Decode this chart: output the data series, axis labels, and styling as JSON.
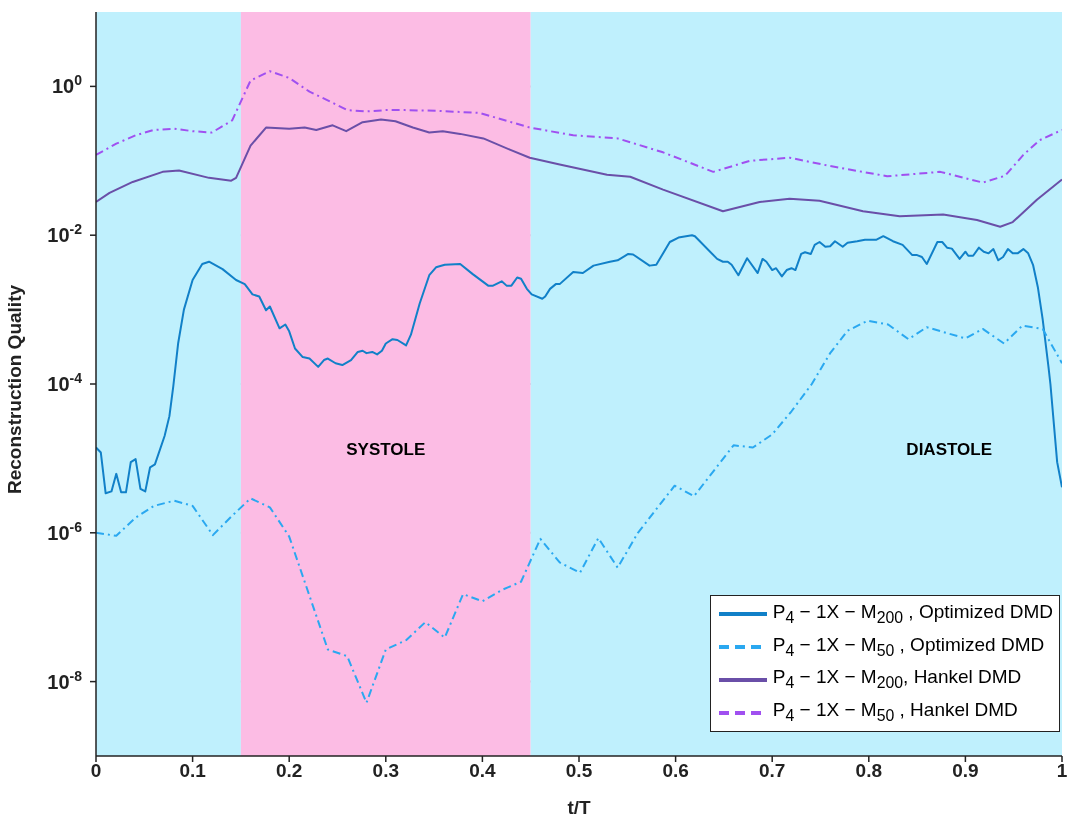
{
  "chart_data": {
    "type": "line",
    "xlabel": "t/T",
    "ylabel": "Reconstruction Quality",
    "log": "y",
    "grid": "y",
    "legend": "bottom right",
    "xlim": [
      0,
      1
    ],
    "xticks": [
      0,
      0.1,
      0.2,
      0.3,
      0.4,
      0.5,
      0.6,
      0.7,
      0.8,
      0.9,
      1
    ],
    "ylim": [
      1e-09,
      10
    ],
    "yticks": [
      {
        "value": 1e-08,
        "label": "10$^{-8}$"
      },
      {
        "value": 1e-06,
        "label": "10$^{-6}$"
      },
      {
        "value": 0.0001,
        "label": "10$^{-4}$"
      },
      {
        "value": 0.01,
        "label": "10$^{-2}$"
      },
      {
        "value": 1,
        "label": "10$^{0}$"
      }
    ],
    "bands": [
      {
        "axis": "x",
        "from": 0,
        "to": 0.15,
        "color": "#bff0fd"
      },
      {
        "axis": "x",
        "from": 0.15,
        "to": 0.45,
        "color": "#fcbce4",
        "label": "SYSTOLE"
      },
      {
        "axis": "x",
        "from": 0.45,
        "to": 1,
        "color": "#bff0fd",
        "label": "DIASTOLE"
      }
    ],
    "series": [
      {
        "name": "P$_{4}$ − 1X − M$_{200}$ , Optimized DMD",
        "color": "#1180c8",
        "line_style": "solid",
        "x": [
          0,
          0.005,
          0.01,
          0.016,
          0.021,
          0.026,
          0.031,
          0.036,
          0.041,
          0.046,
          0.051,
          0.056,
          0.061,
          0.071,
          0.076,
          0.08,
          0.085,
          0.091,
          0.1,
          0.11,
          0.117,
          0.131,
          0.145,
          0.154,
          0.162,
          0.169,
          0.176,
          0.18,
          0.19,
          0.196,
          0.2,
          0.206,
          0.214,
          0.221,
          0.23,
          0.236,
          0.24,
          0.248,
          0.255,
          0.264,
          0.271,
          0.276,
          0.28,
          0.286,
          0.291,
          0.296,
          0.3,
          0.307,
          0.312,
          0.321,
          0.326,
          0.335,
          0.345,
          0.352,
          0.361,
          0.377,
          0.39,
          0.406,
          0.411,
          0.42,
          0.425,
          0.43,
          0.436,
          0.44,
          0.446,
          0.451,
          0.462,
          0.465,
          0.47,
          0.476,
          0.48,
          0.494,
          0.504,
          0.515,
          0.532,
          0.54,
          0.551,
          0.556,
          0.573,
          0.58,
          0.594,
          0.603,
          0.617,
          0.62,
          0.643,
          0.649,
          0.654,
          0.658,
          0.665,
          0.674,
          0.685,
          0.69,
          0.694,
          0.7,
          0.704,
          0.71,
          0.715,
          0.72,
          0.724,
          0.73,
          0.734,
          0.74,
          0.744,
          0.749,
          0.755,
          0.76,
          0.765,
          0.773,
          0.778,
          0.788,
          0.796,
          0.808,
          0.815,
          0.825,
          0.835,
          0.845,
          0.85,
          0.855,
          0.86,
          0.871,
          0.876,
          0.881,
          0.886,
          0.894,
          0.9,
          0.903,
          0.908,
          0.914,
          0.919,
          0.924,
          0.929,
          0.934,
          0.939,
          0.944,
          0.949,
          0.954,
          0.96,
          0.965,
          0.97,
          0.975,
          0.98,
          0.986,
          0.988,
          0.995,
          1
        ],
        "values": [
          1.4e-05,
          1.2e-05,
          3.4e-06,
          3.6e-06,
          6.2e-06,
          3.5e-06,
          3.5e-06,
          8.9e-06,
          9.8e-06,
          3.9e-06,
          3.6e-06,
          7.6e-06,
          8.3e-06,
          2e-05,
          3.7e-05,
          9.3e-05,
          0.00035,
          0.001,
          0.0025,
          0.0041,
          0.0044,
          0.0035,
          0.0025,
          0.0022,
          0.0016,
          0.0015,
          0.00098,
          0.0011,
          0.00056,
          0.00063,
          0.00051,
          0.0003,
          0.00023,
          0.00022,
          0.00017,
          0.00021,
          0.00022,
          0.00019,
          0.00018,
          0.00021,
          0.00027,
          0.00028,
          0.00026,
          0.00027,
          0.00025,
          0.00028,
          0.00035,
          0.0004,
          0.00039,
          0.00033,
          0.00046,
          0.0012,
          0.0029,
          0.0037,
          0.004,
          0.0041,
          0.003,
          0.0021,
          0.0021,
          0.0024,
          0.0021,
          0.0021,
          0.0027,
          0.0026,
          0.0019,
          0.0016,
          0.0014,
          0.0015,
          0.0019,
          0.0022,
          0.0022,
          0.0032,
          0.0031,
          0.0039,
          0.0044,
          0.0046,
          0.0056,
          0.0055,
          0.0039,
          0.004,
          0.0081,
          0.0093,
          0.01,
          0.0097,
          0.0048,
          0.0044,
          0.0044,
          0.004,
          0.0029,
          0.0049,
          0.0031,
          0.0048,
          0.0044,
          0.0034,
          0.0036,
          0.0028,
          0.0034,
          0.0036,
          0.0034,
          0.0056,
          0.0059,
          0.0056,
          0.0074,
          0.0081,
          0.007,
          0.0071,
          0.0083,
          0.007,
          0.0079,
          0.0083,
          0.0087,
          0.0087,
          0.0097,
          0.0083,
          0.0074,
          0.0054,
          0.0054,
          0.0051,
          0.0041,
          0.0081,
          0.0081,
          0.0068,
          0.0066,
          0.0048,
          0.006,
          0.0053,
          0.0053,
          0.0068,
          0.006,
          0.0057,
          0.0065,
          0.0046,
          0.0051,
          0.0065,
          0.0057,
          0.0057,
          0.0065,
          0.0057,
          0.004,
          0.002,
          0.00074,
          0.00017,
          0.0001,
          8.9e-06,
          4.1e-06
        ]
      },
      {
        "name": "P$_{4}$ − 1X − M$_{50}$ , Optimized DMD",
        "color": "#2aa8f0",
        "line_style": "dashed",
        "x": [
          0,
          0.021,
          0.041,
          0.06,
          0.081,
          0.1,
          0.121,
          0.141,
          0.16,
          0.18,
          0.2,
          0.24,
          0.26,
          0.28,
          0.3,
          0.321,
          0.341,
          0.361,
          0.38,
          0.4,
          0.42,
          0.44,
          0.46,
          0.48,
          0.501,
          0.52,
          0.54,
          0.561,
          0.599,
          0.619,
          0.66,
          0.68,
          0.7,
          0.72,
          0.741,
          0.76,
          0.778,
          0.799,
          0.82,
          0.841,
          0.86,
          0.9,
          0.918,
          0.94,
          0.959,
          0.98,
          1
        ],
        "values": [
          1e-06,
          9.1e-07,
          1.6e-06,
          2.3e-06,
          2.7e-06,
          2.3e-06,
          9.3e-07,
          1.7e-06,
          2.9e-06,
          2.2e-06,
          8.9e-07,
          2.7e-08,
          2.2e-08,
          5.2e-09,
          2.7e-08,
          3.6e-08,
          6.3e-08,
          3.9e-08,
          1.5e-07,
          1.2e-07,
          1.7e-07,
          2.2e-07,
          8.3e-07,
          4e-07,
          2.9e-07,
          8.5e-07,
          3.4e-07,
          1e-06,
          4.3e-06,
          3.1e-06,
          1.5e-05,
          1.4e-05,
          2.1e-05,
          4.3e-05,
          0.0001,
          0.00026,
          0.00052,
          0.00071,
          0.00063,
          0.0004,
          0.00058,
          0.00041,
          0.00055,
          0.00035,
          0.00061,
          0.00055,
          0.00019
        ]
      },
      {
        "name": "P$_{4}$ − 1X − M$_{200}$, Hankel DMD",
        "color": "#6a4fa8",
        "line_style": "solid",
        "x": [
          0,
          0.014,
          0.038,
          0.069,
          0.086,
          0.117,
          0.14,
          0.145,
          0.16,
          0.176,
          0.2,
          0.216,
          0.228,
          0.245,
          0.259,
          0.276,
          0.295,
          0.31,
          0.328,
          0.345,
          0.359,
          0.377,
          0.401,
          0.429,
          0.449,
          0.48,
          0.529,
          0.553,
          0.587,
          0.649,
          0.687,
          0.718,
          0.749,
          0.794,
          0.832,
          0.877,
          0.912,
          0.936,
          0.949,
          0.974,
          1
        ],
        "values": [
          0.028,
          0.037,
          0.052,
          0.071,
          0.074,
          0.059,
          0.054,
          0.059,
          0.16,
          0.28,
          0.27,
          0.28,
          0.26,
          0.3,
          0.25,
          0.33,
          0.36,
          0.34,
          0.28,
          0.24,
          0.25,
          0.23,
          0.2,
          0.14,
          0.11,
          0.089,
          0.065,
          0.061,
          0.041,
          0.021,
          0.028,
          0.031,
          0.029,
          0.021,
          0.018,
          0.019,
          0.016,
          0.013,
          0.015,
          0.03,
          0.056
        ]
      },
      {
        "name": "P$_{4}$ − 1X − M$_{50}$ , Hankel DMD",
        "color": "#a050f0",
        "line_style": "dashed",
        "x": [
          0,
          0.021,
          0.041,
          0.06,
          0.081,
          0.1,
          0.12,
          0.141,
          0.16,
          0.18,
          0.2,
          0.221,
          0.242,
          0.26,
          0.279,
          0.3,
          0.32,
          0.352,
          0.397,
          0.449,
          0.494,
          0.54,
          0.587,
          0.639,
          0.677,
          0.718,
          0.76,
          0.819,
          0.874,
          0.918,
          0.941,
          0.96,
          0.977,
          1
        ],
        "values": [
          0.12,
          0.17,
          0.22,
          0.26,
          0.27,
          0.25,
          0.24,
          0.35,
          1.2,
          1.6,
          1.3,
          0.85,
          0.63,
          0.48,
          0.46,
          0.48,
          0.48,
          0.47,
          0.44,
          0.28,
          0.22,
          0.2,
          0.13,
          0.071,
          0.1,
          0.11,
          0.085,
          0.062,
          0.071,
          0.051,
          0.063,
          0.12,
          0.19,
          0.26
        ]
      }
    ]
  }
}
